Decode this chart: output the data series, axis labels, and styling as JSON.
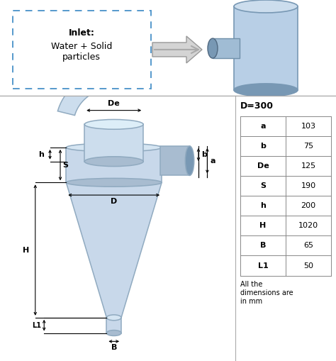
{
  "table_header": "D=300",
  "table_rows": [
    [
      "a",
      "103"
    ],
    [
      "b",
      "75"
    ],
    [
      "De",
      "125"
    ],
    [
      "S",
      "190"
    ],
    [
      "h",
      "200"
    ],
    [
      "H",
      "1020"
    ],
    [
      "B",
      "65"
    ],
    [
      "L1",
      "50"
    ]
  ],
  "table_note": "All the\ndimensions are\nin mm",
  "dashed_box_color": "#5599cc",
  "cyclone_color": "#c8d8ea",
  "cyclone_dark": "#a8bcd0",
  "cyclone_edge": "#90aac0",
  "bg_color": "#ffffff",
  "sep_color": "#aaaaaa"
}
